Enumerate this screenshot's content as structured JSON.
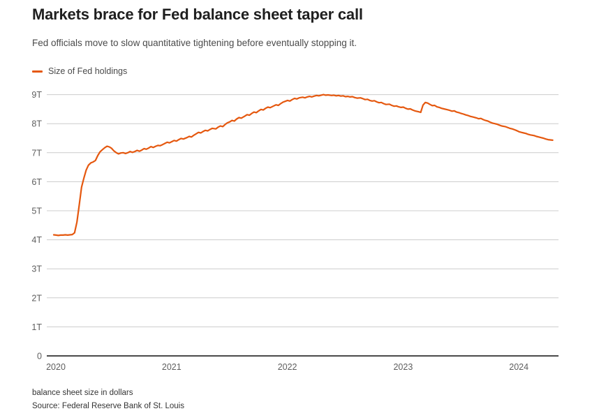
{
  "header": {
    "title": "Markets brace for Fed balance sheet taper call",
    "subtitle": "Fed officials move to slow quantitative tightening before eventually stopping it."
  },
  "legend": {
    "label": "Size of Fed holdings",
    "color": "#e5580f"
  },
  "footer": {
    "note": "balance sheet size in dollars",
    "source": "Source: Federal Reserve Bank of St. Louis"
  },
  "colors": {
    "line": "#e5580f",
    "grid": "#cccccc",
    "axis": "#4a4a4a",
    "tick_text": "#5e5e5e",
    "title": "#1f1f1f",
    "subtitle": "#4a4a4a"
  },
  "chart_data": {
    "type": "line",
    "title": "Markets brace for Fed balance sheet taper call",
    "xlabel": "",
    "ylabel": "balance sheet size in dollars",
    "grid": "horizontal",
    "legend_position": "top-left",
    "xlim": [
      2020.0,
      2024.36
    ],
    "ylim": [
      0,
      9
    ],
    "x_ticks": [
      2020,
      2021,
      2022,
      2023,
      2024
    ],
    "y_ticks": [
      {
        "value": 0,
        "label": "0"
      },
      {
        "value": 1,
        "label": "1T"
      },
      {
        "value": 2,
        "label": "2T"
      },
      {
        "value": 3,
        "label": "3T"
      },
      {
        "value": 4,
        "label": "4T"
      },
      {
        "value": 5,
        "label": "5T"
      },
      {
        "value": 6,
        "label": "6T"
      },
      {
        "value": 7,
        "label": "7T"
      },
      {
        "value": 8,
        "label": "8T"
      },
      {
        "value": 9,
        "label": "9T"
      }
    ],
    "unit": "trillions of US dollars",
    "series": [
      {
        "name": "Size of Fed holdings",
        "color": "#e5580f",
        "x": [
          2020.0,
          2020.02,
          2020.04,
          2020.06,
          2020.08,
          2020.1,
          2020.12,
          2020.14,
          2020.16,
          2020.18,
          2020.2,
          2020.22,
          2020.24,
          2020.26,
          2020.28,
          2020.3,
          2020.32,
          2020.34,
          2020.36,
          2020.38,
          2020.4,
          2020.42,
          2020.44,
          2020.46,
          2020.48,
          2020.5,
          2020.52,
          2020.54,
          2020.56,
          2020.58,
          2020.6,
          2020.62,
          2020.64,
          2020.66,
          2020.68,
          2020.7,
          2020.72,
          2020.74,
          2020.76,
          2020.78,
          2020.8,
          2020.82,
          2020.84,
          2020.86,
          2020.88,
          2020.9,
          2020.92,
          2020.94,
          2020.96,
          2020.98,
          2021.0,
          2021.02,
          2021.04,
          2021.06,
          2021.08,
          2021.1,
          2021.12,
          2021.15,
          2021.17,
          2021.19,
          2021.21,
          2021.23,
          2021.25,
          2021.27,
          2021.29,
          2021.31,
          2021.33,
          2021.35,
          2021.37,
          2021.4,
          2021.42,
          2021.44,
          2021.46,
          2021.48,
          2021.5,
          2021.52,
          2021.54,
          2021.56,
          2021.58,
          2021.6,
          2021.62,
          2021.65,
          2021.67,
          2021.69,
          2021.71,
          2021.73,
          2021.75,
          2021.77,
          2021.79,
          2021.81,
          2021.83,
          2021.85,
          2021.87,
          2021.9,
          2021.92,
          2021.94,
          2021.96,
          2021.98,
          2022.0,
          2022.02,
          2022.04,
          2022.06,
          2022.08,
          2022.1,
          2022.12,
          2022.15,
          2022.17,
          2022.19,
          2022.21,
          2022.23,
          2022.25,
          2022.27,
          2022.29,
          2022.31,
          2022.33,
          2022.35,
          2022.37,
          2022.4,
          2022.42,
          2022.44,
          2022.46,
          2022.48,
          2022.5,
          2022.52,
          2022.54,
          2022.56,
          2022.58,
          2022.6,
          2022.62,
          2022.65,
          2022.67,
          2022.69,
          2022.71,
          2022.73,
          2022.75,
          2022.77,
          2022.79,
          2022.81,
          2022.83,
          2022.85,
          2022.87,
          2022.9,
          2022.92,
          2022.94,
          2022.96,
          2022.98,
          2023.0,
          2023.02,
          2023.04,
          2023.06,
          2023.08,
          2023.1,
          2023.12,
          2023.15,
          2023.17,
          2023.19,
          2023.21,
          2023.23,
          2023.25,
          2023.27,
          2023.29,
          2023.31,
          2023.33,
          2023.35,
          2023.37,
          2023.4,
          2023.42,
          2023.44,
          2023.46,
          2023.48,
          2023.5,
          2023.52,
          2023.54,
          2023.56,
          2023.58,
          2023.6,
          2023.62,
          2023.65,
          2023.67,
          2023.69,
          2023.71,
          2023.73,
          2023.75,
          2023.77,
          2023.79,
          2023.81,
          2023.83,
          2023.85,
          2023.87,
          2023.9,
          2023.92,
          2023.94,
          2023.96,
          2023.98,
          2024.0,
          2024.02,
          2024.04,
          2024.06,
          2024.08,
          2024.1,
          2024.12,
          2024.15,
          2024.17,
          2024.19,
          2024.21,
          2024.23,
          2024.25,
          2024.27,
          2024.29,
          2024.31
        ],
        "values": [
          4.17,
          4.16,
          4.15,
          4.16,
          4.16,
          4.17,
          4.16,
          4.17,
          4.18,
          4.24,
          4.61,
          5.2,
          5.81,
          6.12,
          6.4,
          6.57,
          6.65,
          6.68,
          6.73,
          6.9,
          7.03,
          7.1,
          7.17,
          7.22,
          7.2,
          7.15,
          7.06,
          7.0,
          6.96,
          6.99,
          7.0,
          6.97,
          7.0,
          7.04,
          7.01,
          7.04,
          7.08,
          7.05,
          7.09,
          7.14,
          7.12,
          7.16,
          7.21,
          7.18,
          7.22,
          7.25,
          7.24,
          7.28,
          7.32,
          7.36,
          7.34,
          7.38,
          7.42,
          7.4,
          7.45,
          7.49,
          7.47,
          7.52,
          7.56,
          7.54,
          7.6,
          7.65,
          7.7,
          7.68,
          7.73,
          7.77,
          7.75,
          7.8,
          7.84,
          7.82,
          7.88,
          7.92,
          7.9,
          7.97,
          8.03,
          8.06,
          8.11,
          8.09,
          8.16,
          8.21,
          8.19,
          8.26,
          8.31,
          8.29,
          8.35,
          8.4,
          8.38,
          8.44,
          8.49,
          8.47,
          8.53,
          8.57,
          8.55,
          8.61,
          8.65,
          8.63,
          8.69,
          8.74,
          8.77,
          8.8,
          8.78,
          8.83,
          8.87,
          8.85,
          8.89,
          8.91,
          8.89,
          8.92,
          8.94,
          8.92,
          8.95,
          8.97,
          8.96,
          8.98,
          9.0,
          8.98,
          8.99,
          8.97,
          8.98,
          8.96,
          8.97,
          8.95,
          8.96,
          8.93,
          8.94,
          8.92,
          8.93,
          8.9,
          8.88,
          8.89,
          8.86,
          8.83,
          8.84,
          8.8,
          8.78,
          8.79,
          8.75,
          8.72,
          8.73,
          8.69,
          8.66,
          8.67,
          8.63,
          8.6,
          8.61,
          8.58,
          8.56,
          8.57,
          8.53,
          8.5,
          8.51,
          8.47,
          8.44,
          8.41,
          8.39,
          8.64,
          8.73,
          8.71,
          8.66,
          8.62,
          8.63,
          8.58,
          8.56,
          8.53,
          8.51,
          8.48,
          8.46,
          8.43,
          8.44,
          8.4,
          8.38,
          8.35,
          8.33,
          8.3,
          8.28,
          8.25,
          8.23,
          8.2,
          8.17,
          8.18,
          8.14,
          8.11,
          8.09,
          8.05,
          8.02,
          8.0,
          7.98,
          7.95,
          7.92,
          7.9,
          7.87,
          7.84,
          7.82,
          7.79,
          7.76,
          7.72,
          7.7,
          7.68,
          7.66,
          7.63,
          7.61,
          7.59,
          7.56,
          7.54,
          7.52,
          7.5,
          7.47,
          7.45,
          7.44,
          7.43
        ]
      }
    ]
  }
}
